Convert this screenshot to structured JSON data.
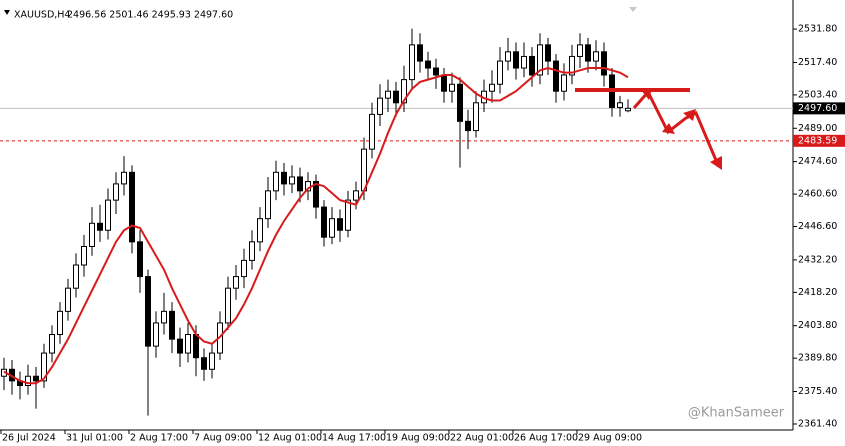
{
  "chart_data": {
    "type": "candlestick",
    "symbol": "XAUUSD,H4",
    "quote": "2496.56 2501.46 2495.93 2497.60",
    "watermark": "@KhanSameer",
    "categories": [
      "26 Jul 2024",
      null,
      null,
      null,
      null,
      null,
      null,
      null,
      "31 Jul 01:00",
      null,
      null,
      null,
      null,
      null,
      null,
      null,
      "2 Aug 17:00",
      null,
      null,
      null,
      null,
      null,
      null,
      null,
      "7 Aug 09:00",
      null,
      null,
      null,
      null,
      null,
      null,
      null,
      "12 Aug 01:00",
      null,
      null,
      null,
      null,
      null,
      null,
      null,
      "14 Aug 17:00",
      null,
      null,
      null,
      null,
      null,
      null,
      null,
      "19 Aug 09:00",
      null,
      null,
      null,
      null,
      null,
      null,
      null,
      "22 Aug 01:00",
      null,
      null,
      null,
      null,
      null,
      null,
      null,
      "26 Aug 17:00",
      null,
      null,
      null,
      null,
      null,
      null,
      null,
      "29 Aug 09:00",
      null,
      null,
      null,
      null,
      null,
      null
    ],
    "open": [
      2382,
      2385,
      2380,
      2378,
      2382,
      2380,
      2392,
      2400,
      2410,
      2420,
      2430,
      2438,
      2448,
      2445,
      2458,
      2465,
      2470,
      2440,
      2425,
      2395,
      2405,
      2410,
      2398,
      2392,
      2400,
      2390,
      2385,
      2392,
      2405,
      2420,
      2425,
      2432,
      2440,
      2450,
      2462,
      2470,
      2465,
      2468,
      2462,
      2466,
      2455,
      2442,
      2450,
      2445,
      2458,
      2462,
      2480,
      2495,
      2502,
      2505,
      2500,
      2510,
      2525,
      2518,
      2515,
      2512,
      2505,
      2508,
      2492,
      2488,
      2500,
      2505,
      2508,
      2518,
      2522,
      2515,
      2520,
      2512,
      2525,
      2518,
      2505,
      2512,
      2520,
      2525,
      2518,
      2522,
      2512,
      2498,
      2496.56
    ],
    "high": [
      2390,
      2389,
      2384,
      2387,
      2386,
      2396,
      2404,
      2414,
      2424,
      2435,
      2443,
      2455,
      2456,
      2463,
      2470,
      2477,
      2473,
      2445,
      2428,
      2410,
      2418,
      2414,
      2403,
      2405,
      2404,
      2394,
      2396,
      2410,
      2425,
      2430,
      2437,
      2445,
      2455,
      2468,
      2475,
      2474,
      2473,
      2472,
      2470,
      2469,
      2458,
      2455,
      2454,
      2462,
      2466,
      2485,
      2500,
      2508,
      2510,
      2509,
      2516,
      2532,
      2530,
      2522,
      2519,
      2515,
      2513,
      2511,
      2497,
      2505,
      2510,
      2514,
      2524,
      2528,
      2526,
      2526,
      2524,
      2530,
      2528,
      2521,
      2517,
      2525,
      2530,
      2528,
      2527,
      2526,
      2515,
      2503,
      2501.46
    ],
    "low": [
      2376,
      2374,
      2372,
      2374,
      2368,
      2377,
      2388,
      2396,
      2406,
      2416,
      2425,
      2434,
      2440,
      2441,
      2452,
      2460,
      2435,
      2418,
      2365,
      2390,
      2400,
      2392,
      2386,
      2388,
      2382,
      2380,
      2381,
      2389,
      2402,
      2415,
      2420,
      2428,
      2436,
      2446,
      2458,
      2460,
      2461,
      2457,
      2458,
      2450,
      2438,
      2439,
      2440,
      2442,
      2454,
      2458,
      2476,
      2490,
      2496,
      2494,
      2496,
      2506,
      2513,
      2510,
      2506,
      2500,
      2500,
      2472,
      2480,
      2485,
      2496,
      2500,
      2504,
      2514,
      2510,
      2511,
      2507,
      2508,
      2512,
      2500,
      2501,
      2508,
      2515,
      2513,
      2514,
      2507,
      2494,
      2494,
      2495.93
    ],
    "close": [
      2385,
      2380,
      2378,
      2382,
      2380,
      2392,
      2400,
      2410,
      2420,
      2430,
      2438,
      2448,
      2445,
      2458,
      2465,
      2470,
      2440,
      2425,
      2395,
      2405,
      2410,
      2398,
      2392,
      2400,
      2390,
      2385,
      2392,
      2405,
      2420,
      2425,
      2432,
      2440,
      2450,
      2462,
      2470,
      2465,
      2468,
      2462,
      2466,
      2455,
      2442,
      2450,
      2445,
      2458,
      2462,
      2480,
      2495,
      2502,
      2505,
      2500,
      2510,
      2525,
      2518,
      2515,
      2512,
      2505,
      2508,
      2492,
      2488,
      2500,
      2505,
      2508,
      2518,
      2522,
      2515,
      2520,
      2512,
      2525,
      2518,
      2505,
      2512,
      2520,
      2525,
      2518,
      2522,
      2512,
      2498,
      2500,
      2497.6
    ],
    "up_color": "#ffffff",
    "down_color": "#000000",
    "overlays": [
      {
        "color": "#d91a1a",
        "values": [
          2384,
          2382,
          2380,
          2379,
          2379,
          2381,
          2386,
          2392,
          2398,
          2405,
          2412,
          2419,
          2426,
          2433,
          2440,
          2445,
          2447,
          2446,
          2440,
          2434,
          2428,
          2420,
          2413,
          2406,
          2400,
          2397,
          2396,
          2399,
          2403,
          2407,
          2413,
          2420,
          2428,
          2436,
          2443,
          2449,
          2454,
          2459,
          2463,
          2465,
          2464,
          2461,
          2458,
          2457,
          2456,
          2462,
          2470,
          2478,
          2487,
          2495,
          2501,
          2506,
          2509,
          2510,
          2511,
          2512,
          2512,
          2510,
          2507,
          2504,
          2502,
          2501,
          2501,
          2503,
          2505,
          2508,
          2511,
          2514,
          2515,
          2514,
          2513,
          2513,
          2514,
          2515,
          2515,
          2515,
          2514,
          2513,
          2511
        ]
      }
    ],
    "price_line": {
      "value": 2497.6,
      "label": "2497.60",
      "color": "#c0c0c0"
    },
    "alert_line": {
      "value": 2483.59,
      "color": "#d91a1a"
    },
    "ylim": [
      2358.8,
      2542.2
    ],
    "yticks": [
      {
        "value": 2361.4,
        "label": "2361.40"
      },
      {
        "value": 2375.4,
        "label": "2375.40"
      },
      {
        "value": 2389.8,
        "label": "2389.80"
      },
      {
        "value": 2403.8,
        "label": "2403.80"
      },
      {
        "value": 2418.2,
        "label": "2418.20"
      },
      {
        "value": 2432.2,
        "label": "2432.20"
      },
      {
        "value": 2446.6,
        "label": "2446.60"
      },
      {
        "value": 2460.6,
        "label": "2460.60"
      },
      {
        "value": 2474.6,
        "label": "2474.60"
      },
      {
        "value": 2489,
        "label": "2489.00"
      },
      {
        "value": 2503.4,
        "label": "2503.40"
      },
      {
        "value": 2517.4,
        "label": "2517.40"
      },
      {
        "value": 2531.8,
        "label": "2531.80"
      }
    ]
  }
}
